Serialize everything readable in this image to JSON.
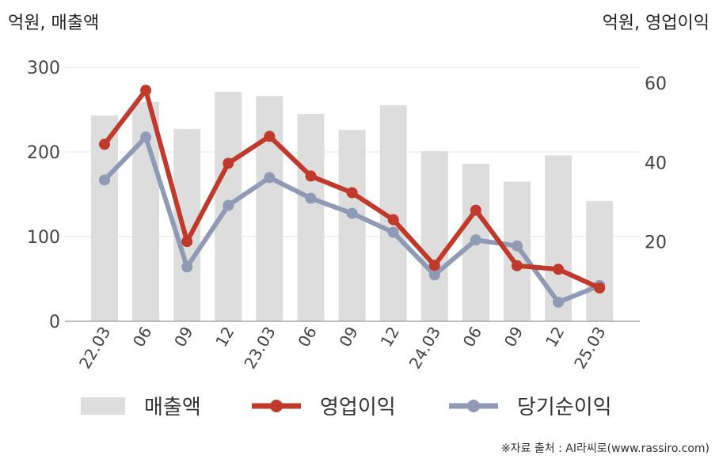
{
  "chart_data": {
    "type": "bar+line",
    "categories": [
      "22.03",
      "06",
      "09",
      "12",
      "23.03",
      "06",
      "09",
      "12",
      "24.03",
      "06",
      "09",
      "12",
      "25.03"
    ],
    "left_axis": {
      "label": "억원, 매출액",
      "ticks": [
        "0",
        "100",
        "200",
        "300"
      ],
      "range": [
        0,
        300
      ]
    },
    "right_axis": {
      "label": "억원, 영업이익",
      "ticks": [
        "20",
        "40",
        "60"
      ],
      "range": [
        0,
        64
      ]
    },
    "series": [
      {
        "name": "매출액",
        "type": "bar",
        "axis": "left",
        "color": "#dddddd",
        "values": [
          243,
          259,
          227,
          271,
          266,
          245,
          226,
          255,
          201,
          186,
          165,
          196,
          142
        ]
      },
      {
        "name": "영업이익",
        "type": "line",
        "axis": "right",
        "color": "#c0392b",
        "values": [
          44.6,
          58.2,
          20.1,
          39.8,
          46.6,
          36.6,
          32.4,
          25.6,
          14.1,
          28.0,
          14.0,
          13.1,
          8.4
        ]
      },
      {
        "name": "당기순이익",
        "type": "line",
        "axis": "right",
        "color": "#8f9bb5",
        "values": [
          35.6,
          46.4,
          13.7,
          29.2,
          36.2,
          31.0,
          27.2,
          22.4,
          11.7,
          20.5,
          19.0,
          4.8,
          9.0
        ]
      }
    ],
    "grid": true,
    "legend_position": "bottom"
  },
  "footer": {
    "source": "※자료 출처 : AI라씨로(www.rassiro.com)"
  }
}
